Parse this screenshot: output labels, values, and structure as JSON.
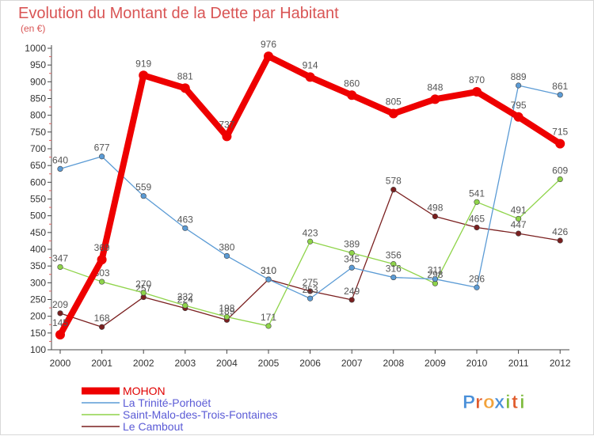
{
  "chart_data": {
    "type": "line",
    "title": "Evolution du Montant de la Dette par Habitant",
    "subtitle": "(en €)",
    "x": [
      "2000",
      "2001",
      "2002",
      "2003",
      "2004",
      "2005",
      "2006",
      "2007",
      "2008",
      "2009",
      "2010",
      "2011",
      "2012"
    ],
    "yticks": [
      "100",
      "150",
      "200",
      "250",
      "300",
      "350",
      "400",
      "450",
      "500",
      "550",
      "600",
      "650",
      "700",
      "750",
      "800",
      "850",
      "900",
      "950",
      "1000"
    ],
    "ylim": [
      100,
      1000
    ],
    "grid": false,
    "legend_position": "bottom-left",
    "series": [
      {
        "name": "MOHON",
        "color": "#ee0000",
        "values": [
          145,
          369,
          919,
          881,
          737,
          976,
          914,
          860,
          805,
          848,
          870,
          795,
          715
        ],
        "labels": [
          "145",
          "369",
          "919",
          "881",
          "737",
          "976",
          "914",
          "860",
          "805",
          "848",
          "870",
          "795",
          "715"
        ]
      },
      {
        "name": "La Trinité-Porhoët",
        "color": "#5b9bd5",
        "values": [
          640,
          677,
          559,
          463,
          380,
          310,
          253,
          345,
          316,
          311,
          286,
          889,
          861
        ],
        "labels": [
          "640",
          "677",
          "559",
          "463",
          "380",
          "310",
          "253",
          "345",
          "316",
          "311",
          "286",
          "889",
          "861"
        ]
      },
      {
        "name": "Saint-Malo-des-Trois-Fontaines",
        "color": "#8fd44a",
        "values": [
          347,
          303,
          270,
          232,
          198,
          171,
          423,
          389,
          356,
          298,
          541,
          491,
          609
        ],
        "labels": [
          "347",
          "303",
          "270",
          "232",
          "198",
          "171",
          "423",
          "389",
          "356",
          "298",
          "541",
          "491",
          "609"
        ]
      },
      {
        "name": "Le Cambout",
        "color": "#7a1f1f",
        "values": [
          209,
          168,
          257,
          224,
          189,
          310,
          275,
          249,
          578,
          498,
          465,
          447,
          426
        ],
        "labels": [
          "209",
          "168",
          "257",
          "224",
          "189",
          "310",
          "275",
          "249",
          "578",
          "498",
          "465",
          "447",
          "426"
        ]
      }
    ]
  },
  "brand": {
    "logo_text": "Proxiti",
    "letters": [
      "P",
      "r",
      "o",
      "x",
      "i",
      "t",
      "i"
    ],
    "letter_colors": [
      "#4a90d9",
      "#e05a2a",
      "#f2a23a",
      "#4a90d9",
      "#7dbb3c",
      "#e05a2a",
      "#7dbb3c"
    ]
  }
}
